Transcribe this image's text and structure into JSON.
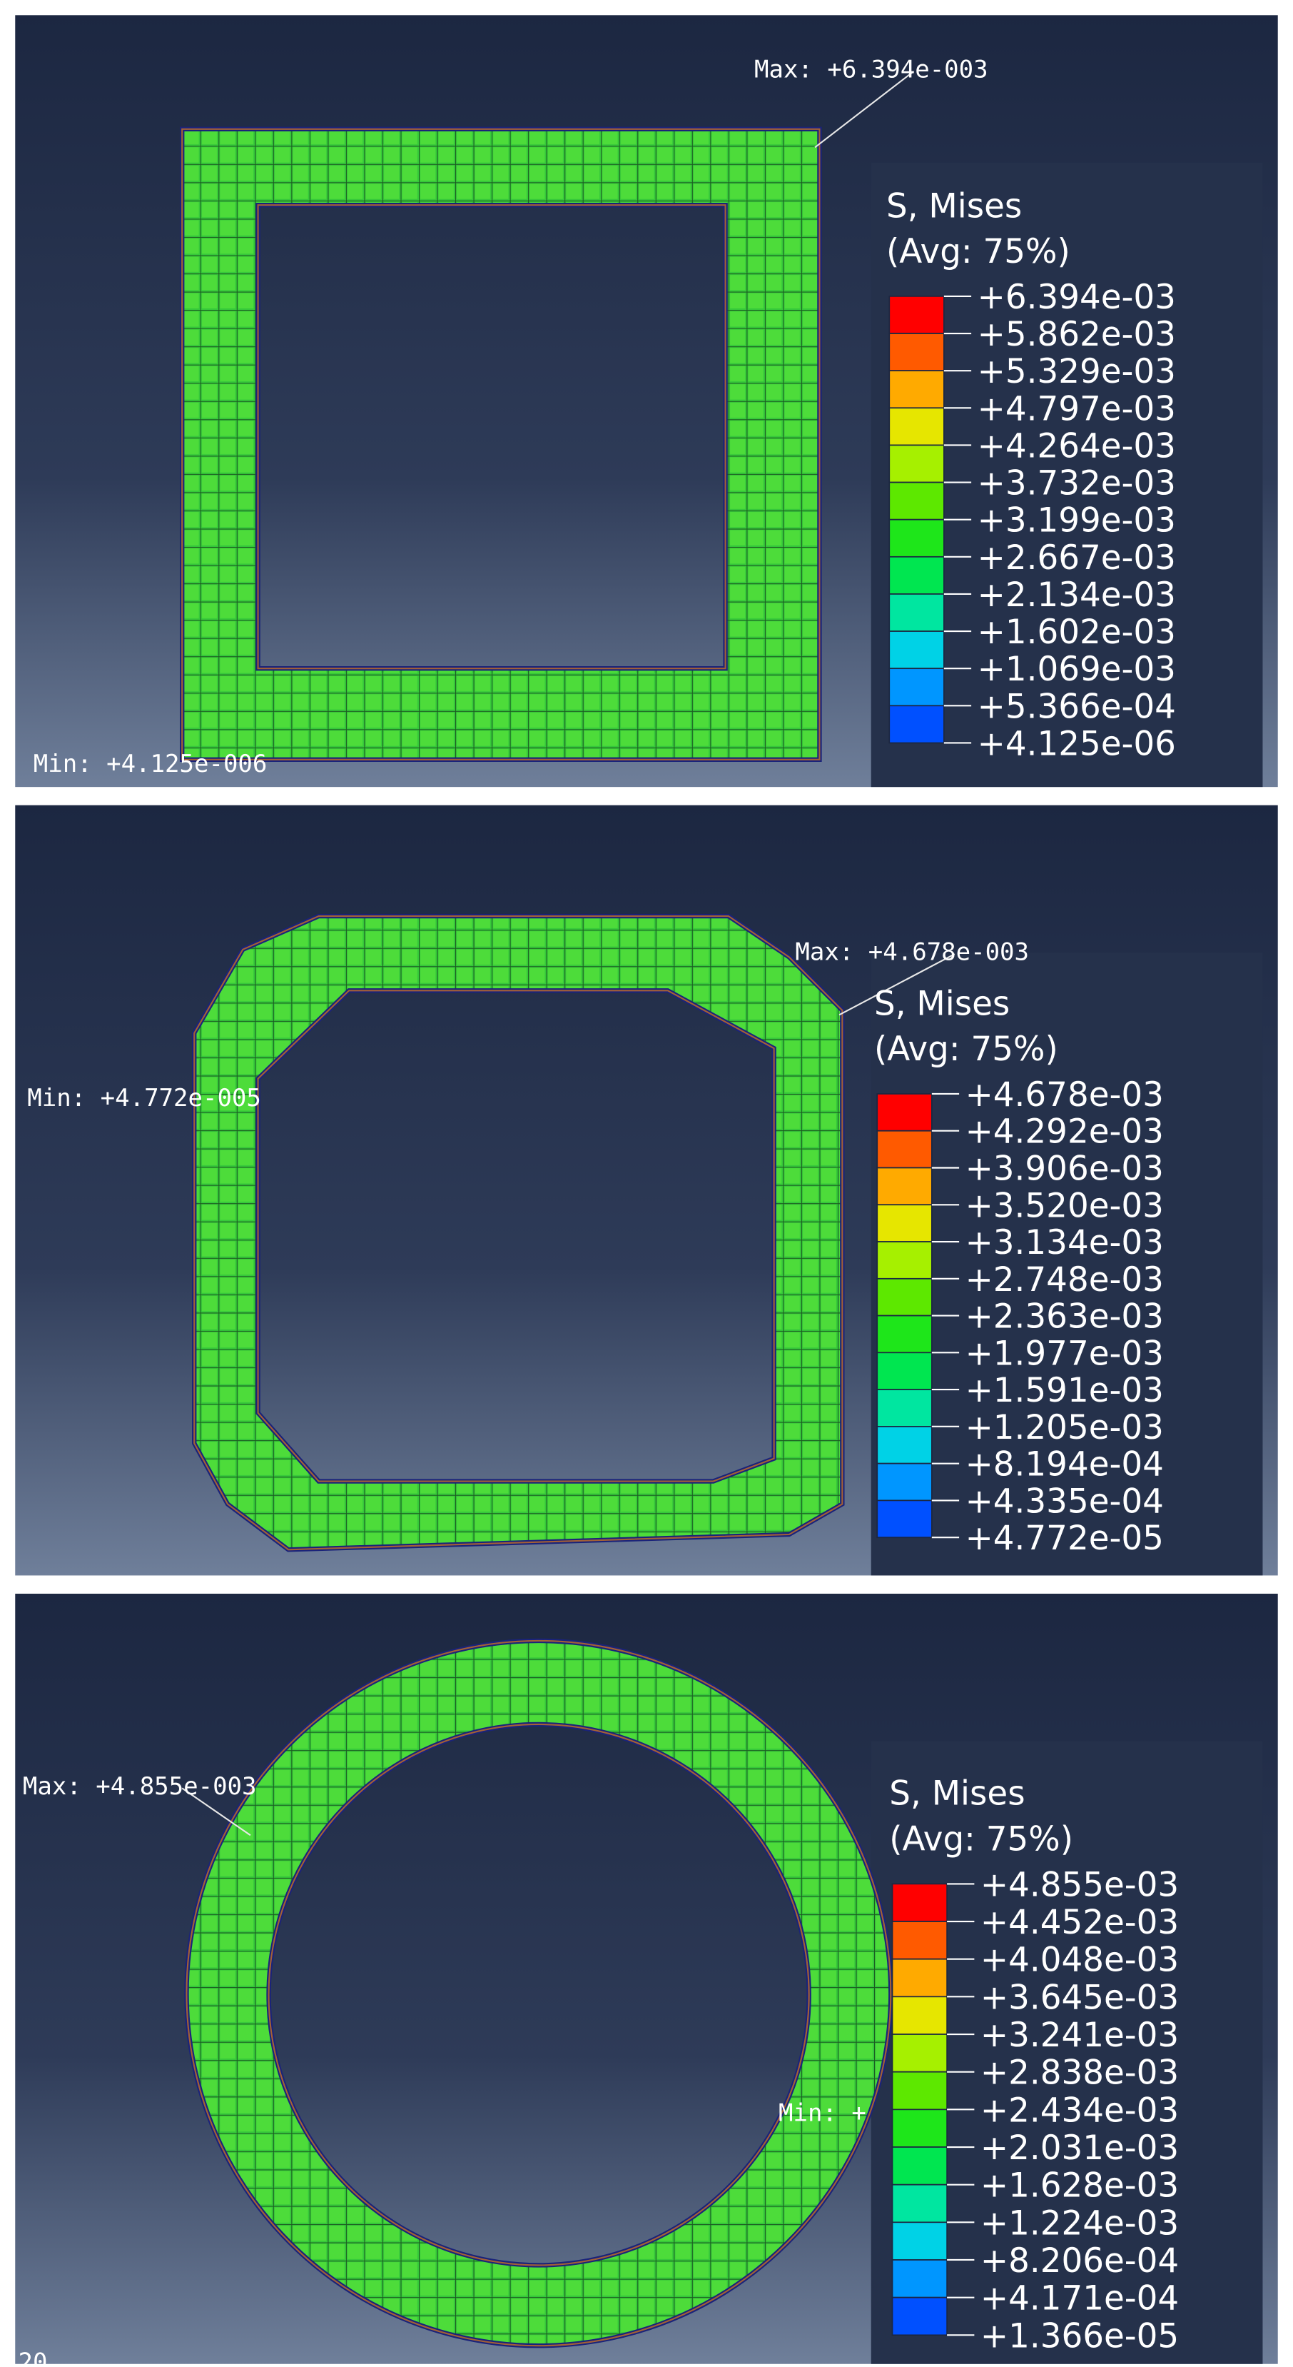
{
  "panels": [
    {
      "max_label": "Max: +6.394e-003",
      "min_label": "Min: +4.125e-006",
      "legend": {
        "title": "S, Mises",
        "subtitle": "(Avg: 75%)",
        "values": [
          "+6.394e-03",
          "+5.862e-03",
          "+5.329e-03",
          "+4.797e-03",
          "+4.264e-03",
          "+3.732e-03",
          "+3.199e-03",
          "+2.667e-03",
          "+2.134e-03",
          "+1.602e-03",
          "+1.069e-03",
          "+5.366e-04",
          "+4.125e-06"
        ]
      }
    },
    {
      "max_label": "Max: +4.678e-003",
      "min_label": "Min: +4.772e-005",
      "legend": {
        "title": "S, Mises",
        "subtitle": "(Avg: 75%)",
        "values": [
          "+4.678e-03",
          "+4.292e-03",
          "+3.906e-03",
          "+3.520e-03",
          "+3.134e-03",
          "+2.748e-03",
          "+2.363e-03",
          "+1.977e-03",
          "+1.591e-03",
          "+1.205e-03",
          "+8.194e-04",
          "+4.335e-04",
          "+4.772e-05"
        ]
      }
    },
    {
      "max_label": "Max: +4.855e-003",
      "min_label": "Min: +",
      "legend": {
        "title": "S, Mises",
        "subtitle": "(Avg: 75%)",
        "values": [
          "+4.855e-03",
          "+4.452e-03",
          "+4.048e-03",
          "+3.645e-03",
          "+3.241e-03",
          "+2.838e-03",
          "+2.434e-03",
          "+2.031e-03",
          "+1.628e-03",
          "+1.224e-03",
          "+8.206e-04",
          "+4.171e-04",
          "+1.366e-05"
        ]
      }
    }
  ],
  "corner_label": "20"
}
